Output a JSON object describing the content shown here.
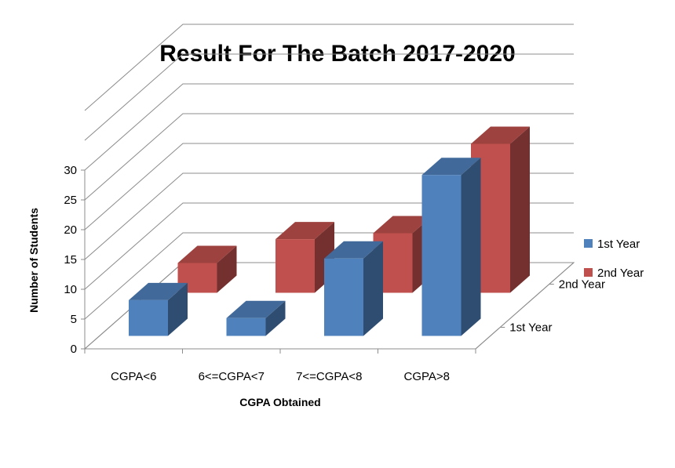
{
  "chart_data": {
    "type": "bar",
    "title": "Result For The Batch 2017-2020",
    "xlabel": "CGPA Obtained",
    "ylabel": "Number of Students",
    "categories": [
      "CGPA<6",
      "6<=CGPA<7",
      "7<=CGPA<8",
      "CGPA>8"
    ],
    "series": [
      {
        "name": "1st Year",
        "values": [
          6,
          3,
          13,
          27
        ],
        "color": "#4F81BD"
      },
      {
        "name": "2nd Year",
        "values": [
          5,
          9,
          10,
          25
        ],
        "color": "#C0504D"
      }
    ],
    "depth_labels": [
      "1st Year",
      "2nd Year"
    ],
    "y_ticks": [
      "0",
      "5",
      "10",
      "15",
      "20",
      "25",
      "30"
    ],
    "ylim": [
      0,
      40
    ],
    "grid": true,
    "legend": "right",
    "style": "3d-column"
  }
}
